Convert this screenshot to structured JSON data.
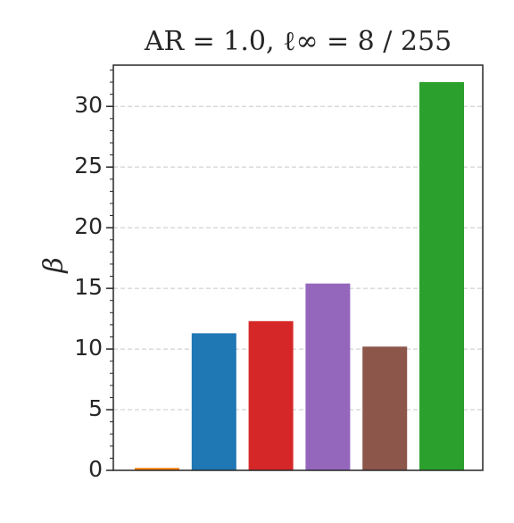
{
  "chart_data": {
    "type": "bar",
    "title": "AR = 1.0, ℓ∞ = 8 / 255",
    "y_label": "β",
    "categories": [
      null,
      null,
      null,
      null,
      null,
      null
    ],
    "values": [
      0.2,
      11.3,
      12.3,
      15.4,
      10.2,
      32.0
    ],
    "colors": [
      "#ff7f0e",
      "#1f77b4",
      "#d62728",
      "#9467bd",
      "#8c564b",
      "#2ca02c"
    ],
    "ylim": [
      0,
      33.4
    ],
    "yticks": [
      0,
      5,
      10,
      15,
      20,
      25,
      30
    ],
    "minor_ytick_step": 1,
    "grid": true
  }
}
